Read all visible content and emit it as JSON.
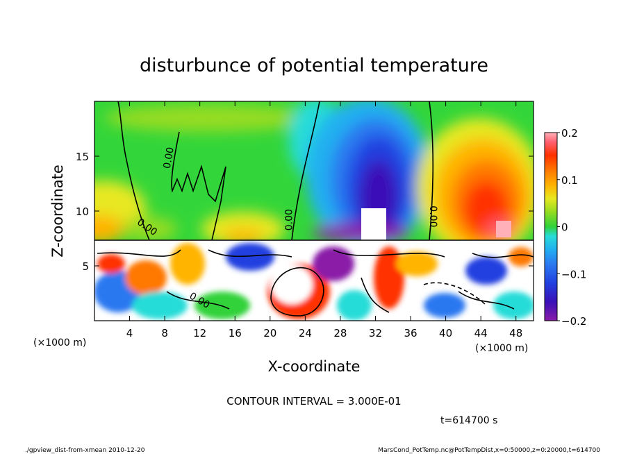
{
  "chart_data": {
    "type": "heatmap",
    "title": "disturbunce of potential temperature",
    "xlabel": "X-coordinate",
    "ylabel": "Z-coordinate",
    "xunit": "(×1000 m)",
    "yunit": "(×1000 m)",
    "xlim": [
      0,
      50
    ],
    "ylim": [
      0,
      20
    ],
    "x_ticks": [
      4,
      8,
      12,
      16,
      20,
      24,
      28,
      32,
      36,
      40,
      44,
      48
    ],
    "y_ticks": [
      5,
      10,
      15
    ],
    "colorbar": {
      "range": [
        -0.2,
        0.2
      ],
      "tick_values": [
        0.2,
        0.1,
        0,
        -0.1,
        -0.2
      ],
      "tick_labels": [
        "0.2",
        "0.1",
        "0",
        "−0.1",
        "−0.2"
      ]
    },
    "contour_labels": [
      {
        "text": "0.00",
        "x": 8.8,
        "z": 14.8,
        "angle": -80
      },
      {
        "text": "0.00",
        "x": 5.8,
        "z": 8.3,
        "angle": 35
      },
      {
        "text": "0.00",
        "x": 22.5,
        "z": 9.2,
        "angle": -90
      },
      {
        "text": "0.00",
        "x": 38.2,
        "z": 9.5,
        "angle": 90
      },
      {
        "text": "0.00",
        "x": 11.8,
        "z": 1.6,
        "angle": 30
      }
    ],
    "contour_interval": "CONTOUR INTERVAL = 3.000E-01",
    "time": "t=614700 s"
  },
  "footer": {
    "left": "./gpview_dist-from-xmean  2010-12-20",
    "right": "MarsCond_PotTemp.nc@PotTempDist,x=0:50000,z=0:20000,t=614700"
  },
  "colors": {
    "neutral": "#33d63a",
    "palette": [
      "#8a1ca8",
      "#3a10b8",
      "#2040e0",
      "#2c78f0",
      "#22b0f0",
      "#28dcd8",
      "#20d890",
      "#30d23a",
      "#96dc20",
      "#e8e820",
      "#ffb400",
      "#ff7800",
      "#ff3000",
      "#ff6070",
      "#ffb0b8"
    ]
  }
}
